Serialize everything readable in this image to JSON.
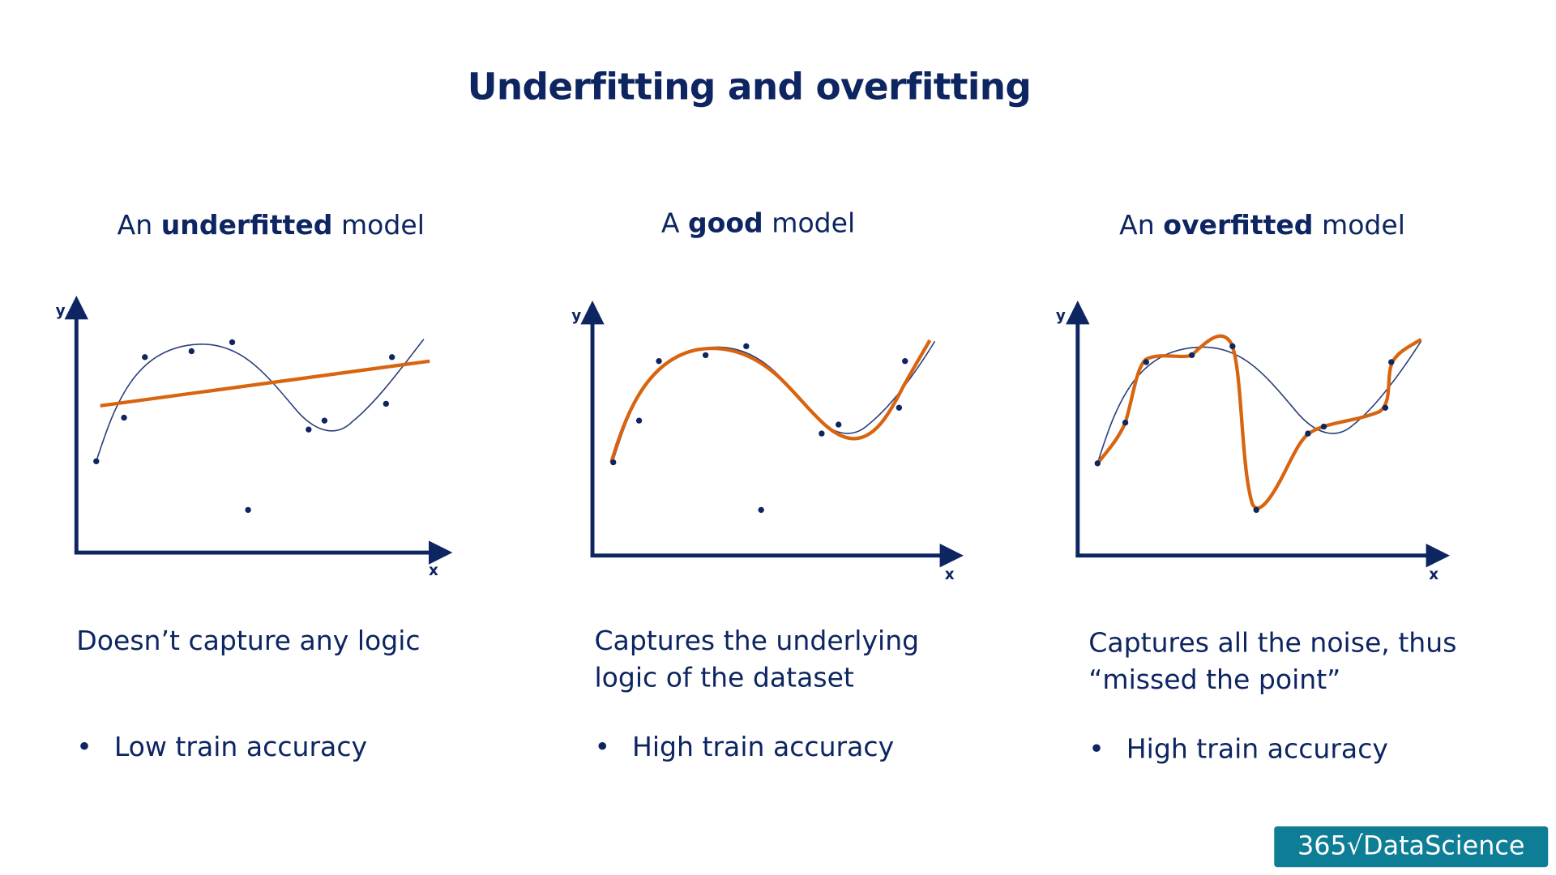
{
  "title": "Underfitting and overfitting",
  "panels": [
    {
      "sub_pre": "An ",
      "sub_bold": "underfitted",
      "sub_post": " model",
      "description": "Doesn’t capture any logic",
      "bullet": "Low train accuracy"
    },
    {
      "sub_pre": "A ",
      "sub_bold": "good",
      "sub_post": " model",
      "description_line1": "Captures the underlying",
      "description_line2": "logic of the dataset",
      "bullet": "High train accuracy"
    },
    {
      "sub_pre": "An ",
      "sub_bold": "overfitted",
      "sub_post": " model",
      "description_line1": "Captures all the noise, thus",
      "description_line2": "“missed the point”",
      "bullet": "High train accuracy"
    }
  ],
  "axes": {
    "x_label": "x",
    "y_label": "y"
  },
  "bullet_symbol": "•",
  "logo": "365√DataScience",
  "colors": {
    "navy": "#0d2561",
    "orange": "#d9640f",
    "logo_bg": "#0e7d96"
  }
}
